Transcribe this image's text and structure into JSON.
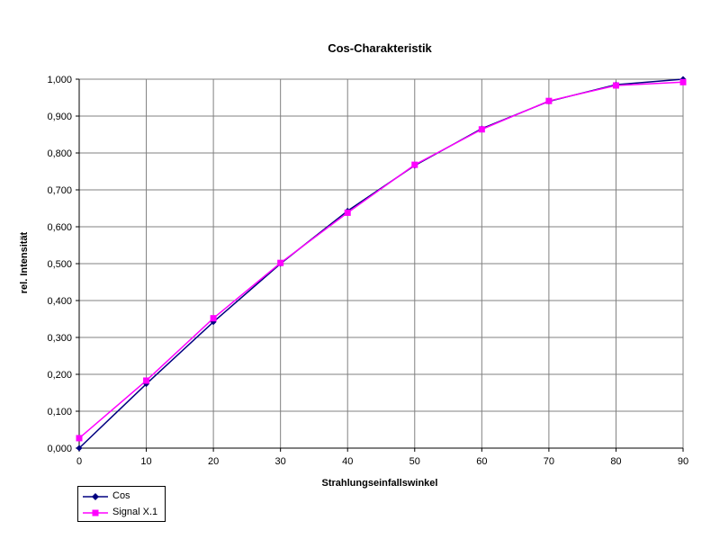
{
  "chart_data": {
    "type": "line",
    "title": "Cos-Charakteristik",
    "xlabel": "Strahlungseinfallswinkel",
    "ylabel": "rel. Intensität",
    "x": [
      0,
      10,
      20,
      30,
      40,
      50,
      60,
      70,
      80,
      90
    ],
    "xlim": [
      0,
      90
    ],
    "ylim": [
      0,
      1
    ],
    "xticks": [
      "0",
      "10",
      "20",
      "30",
      "40",
      "50",
      "60",
      "70",
      "80",
      "90"
    ],
    "yticks": [
      "0,000",
      "0,100",
      "0,200",
      "0,300",
      "0,400",
      "0,500",
      "0,600",
      "0,700",
      "0,800",
      "0,900",
      "1,000"
    ],
    "grid": true,
    "legend_position": "bottom-left",
    "series": [
      {
        "name": "Cos",
        "color": "#000080",
        "marker": "diamond",
        "values": [
          0.0,
          0.174,
          0.342,
          0.5,
          0.643,
          0.766,
          0.866,
          0.94,
          0.985,
          1.0
        ]
      },
      {
        "name": "Signal X.1",
        "color": "#ff00ff",
        "marker": "square",
        "values": [
          0.027,
          0.183,
          0.352,
          0.502,
          0.638,
          0.768,
          0.864,
          0.941,
          0.983,
          0.992
        ]
      }
    ]
  }
}
